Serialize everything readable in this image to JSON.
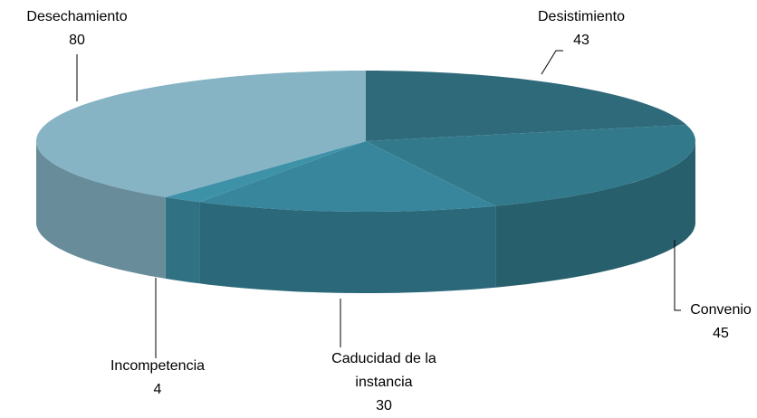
{
  "chart_data": {
    "type": "pie",
    "categories": [
      "Desistimiento",
      "Convenio",
      "Caducidad de la instancia",
      "Incompetencia",
      "Desechamiento"
    ],
    "values": [
      43,
      45,
      30,
      4,
      80
    ],
    "colors": [
      "#2f6a7b",
      "#327a8b",
      "#38869c",
      "#3e92a8",
      "#86b4c5"
    ]
  }
}
